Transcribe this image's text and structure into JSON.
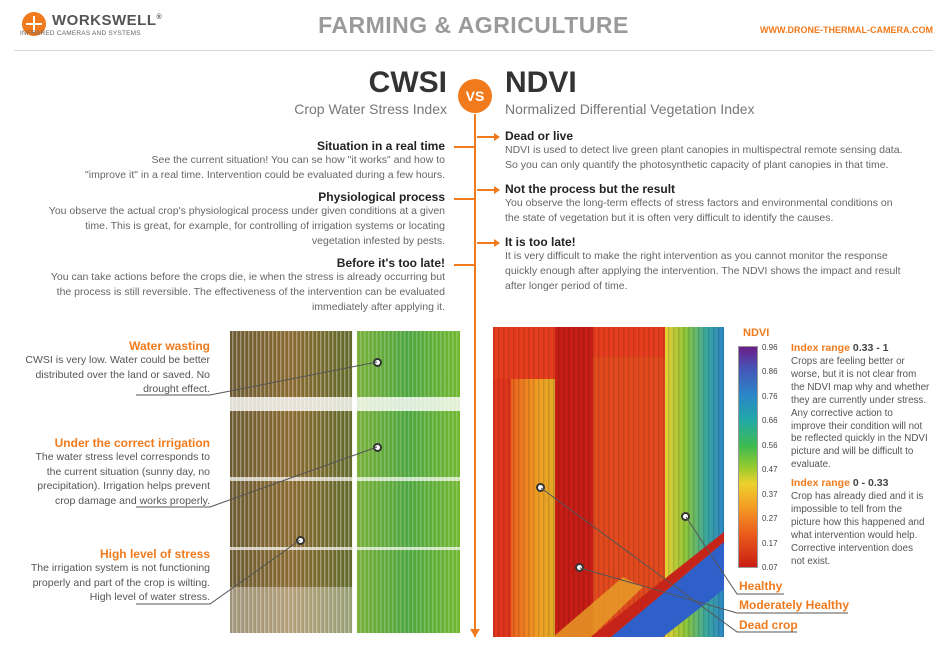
{
  "header": {
    "logo_name": "WORKSWELL",
    "logo_reg": "®",
    "logo_tagline": "INFRARED CAMERAS AND SYSTEMS",
    "title": "FARMING & AGRICULTURE",
    "url": "WWW.DRONE-THERMAL-CAMERA.COM"
  },
  "cwsi": {
    "title": "CWSI",
    "subtitle": "Crop Water Stress Index",
    "points": [
      {
        "head": "Situation in a real time",
        "text": [
          "See the current situation! You can se how \"it works\" and how to",
          "\"improve it\" in a real time. Intervention could be evaluated during a few hours."
        ]
      },
      {
        "head": "Physiological process",
        "text": [
          "You observe the actual crop's physiological process under given conditions at a given",
          "time. This is great, for example, for controlling of irrigation systems or locating",
          "vegetation infested by pests."
        ]
      },
      {
        "head": "Before it's too late!",
        "text": [
          "You can take actions before the crops die, ie when the stress is already occurring but",
          "the process is still reversible. The effectiveness of the intervention can be evaluated",
          "immediately after applying it."
        ]
      }
    ],
    "captions": [
      {
        "head": "Water wasting",
        "text": [
          "CWSI is very low. Water could be better",
          "distributed over the land or saved. No",
          "drought effect."
        ]
      },
      {
        "head": "Under the correct irrigation",
        "text": [
          "The water stress level corresponds to",
          "the current situation (sunny day, no",
          "precipitation). Irrigation helps prevent",
          "crop damage and works properly."
        ]
      },
      {
        "head": "High level of stress",
        "text": [
          "The irrigation system is not functioning",
          "properly and part of the crop is wilting.",
          "High level of water stress."
        ]
      }
    ]
  },
  "vs": "VS",
  "ndvi": {
    "title": "NDVI",
    "subtitle": "Normalized Differential Vegetation Index",
    "points": [
      {
        "head": "Dead or live",
        "text": [
          "NDVI is used to detect live green plant canopies in multispectral remote sensing data.",
          "So you can only quantify the photosynthetic capacity of plant canopies in that time."
        ]
      },
      {
        "head": "Not the process but the result",
        "text": [
          "You observe the long-term effects of stress factors and environmental conditions on",
          "the state of vegetation but it is often very difficult to identify the causes."
        ]
      },
      {
        "head": "It is too late!",
        "text": [
          "It is very difficult to make the right intervention as you cannot monitor the response",
          "quickly enough after applying the intervention. The NDVI shows the impact and result",
          "after longer period of time."
        ]
      }
    ],
    "legend": {
      "title": "NDVI",
      "ticks": [
        "0.96",
        "0.86",
        "0.76",
        "0.66",
        "0.56",
        "0.47",
        "0.37",
        "0.27",
        "0.17",
        "0.07"
      ]
    },
    "ranges": [
      {
        "label": "Index range",
        "value": "0.33 - 1",
        "text": [
          "Crops are feeling better or",
          "worse, but it is not clear from",
          "the NDVI map why and whether",
          "they are currently under stress.",
          "Any corrective action to",
          "improve their condition will not",
          "be reflected quickly in the NDVI",
          "picture and will be difficult to",
          "evaluate."
        ]
      },
      {
        "label": "Index range",
        "value": "0 - 0.33",
        "text": [
          "Crop has already died and it is",
          "impossible to tell from the",
          "picture how this happened and",
          "what intervention would help.",
          "Corrective intervention does",
          "not exist."
        ]
      }
    ],
    "labels": [
      "Healthy",
      "Moderately Healthy",
      "Dead crop"
    ]
  },
  "colors": {
    "accent": "#f07a1c",
    "heading": "#333333",
    "text": "#666666"
  }
}
